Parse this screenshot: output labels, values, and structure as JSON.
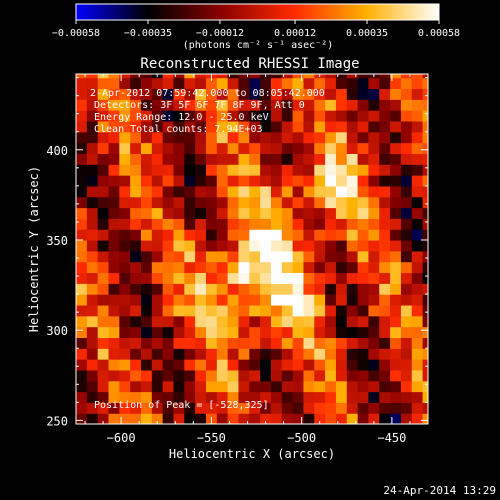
{
  "chart_data": {
    "type": "heatmap",
    "title": "Reconstructed RHESSI Image",
    "xlabel": "Heliocentric X (arcsec)",
    "ylabel": "Heliocentric Y (arcsec)",
    "xlim": [
      -625,
      -430
    ],
    "ylim": [
      248,
      442
    ],
    "x_ticks": [
      -600,
      -550,
      -500,
      -450
    ],
    "y_ticks": [
      250,
      300,
      350,
      400
    ],
    "x_tick_labels": [
      "−600",
      "−550",
      "−500",
      "−450"
    ],
    "y_tick_labels": [
      "250",
      "300",
      "350",
      "400"
    ],
    "colorbar": {
      "min": -0.00058,
      "max": 0.00058,
      "ticks": [
        -0.00058,
        -0.00035,
        -0.00012,
        0.00012,
        0.00035,
        0.00058
      ],
      "tick_labels": [
        "−0.00058",
        "−0.00035",
        "−0.00012",
        "0.00012",
        "0.00035",
        "0.00058"
      ],
      "unit_label": "(photons cm⁻² s⁻¹ asec⁻²)",
      "colormap": [
        "#0000ff",
        "#000000",
        "#8a0000",
        "#ff2a00",
        "#ffb000",
        "#ffffff"
      ]
    },
    "peak": {
      "x": -528,
      "y": 325
    },
    "sources": [
      {
        "x": -528,
        "y": 325,
        "amplitude": 0.00058,
        "sigma": 22
      },
      {
        "x": -493,
        "y": 375,
        "amplitude": 0.00035,
        "sigma": 18
      }
    ],
    "annotations": [
      " 2-Apr-2012 07:59:42.000 to 08:05:42.000",
      "Detectors: 3F 5F 6F 7F 8F 9F, Att 0",
      "Energy Range: 12.0 - 25.0 keV",
      "Clean    Total counts: 7.94E+03"
    ],
    "peak_label": "Position of Peak = [-528,325]"
  },
  "footer": {
    "timestamp": "24-Apr-2014 13:29"
  }
}
